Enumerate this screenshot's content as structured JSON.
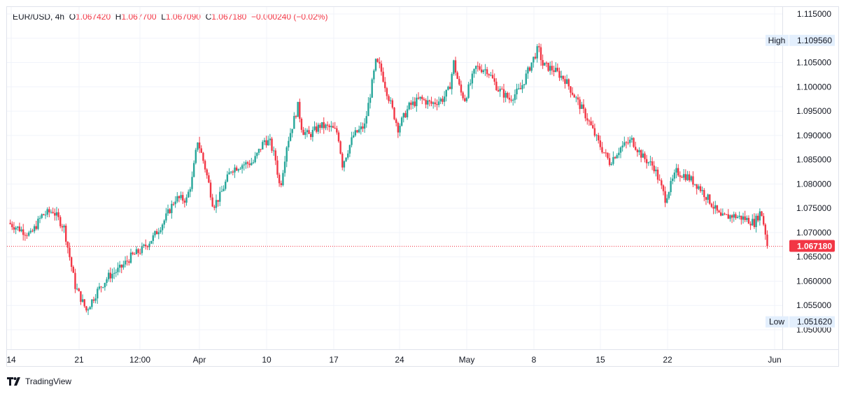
{
  "legend": {
    "symbol": "EUR/USD",
    "interval": "4h",
    "open_label": "O",
    "open": "1.067420",
    "high_label": "H",
    "high": "1.067700",
    "low_label": "L",
    "low": "1.067090",
    "close_label": "C",
    "close": "1.067180",
    "change": "−0.000240 (−0.02%)"
  },
  "brand": "TradingView",
  "colors": {
    "up": "#26a69a",
    "down": "#f23645",
    "grid": "#f0f3fa",
    "last": "#f23645"
  },
  "chart_data": {
    "type": "candlestick",
    "symbol": "EUR/USD",
    "interval": "4h",
    "ylim": [
      1.0465,
      1.1155
    ],
    "yticks": [
      "1.115000",
      "1.110000",
      "1.105000",
      "1.100000",
      "1.095000",
      "1.090000",
      "1.085000",
      "1.080000",
      "1.075000",
      "1.070000",
      "1.065000",
      "1.060000",
      "1.055000",
      "1.050000"
    ],
    "xticks": [
      "14",
      "21",
      "12:00",
      "Apr",
      "10",
      "17",
      "24",
      "May",
      "8",
      "15",
      "22",
      "Jun"
    ],
    "markers": {
      "high": {
        "label": "High",
        "value": "1.109560"
      },
      "low": {
        "label": "Low",
        "value": "1.051620"
      },
      "last": {
        "value": "1.067180"
      }
    },
    "close_path": [
      [
        0,
        1.072
      ],
      [
        2,
        1.0695
      ],
      [
        3,
        1.0735
      ],
      [
        4,
        1.0745
      ],
      [
        5,
        1.071
      ],
      [
        6,
        1.059
      ],
      [
        7,
        1.054
      ],
      [
        8,
        1.058
      ],
      [
        9,
        1.061
      ],
      [
        10,
        1.0625
      ],
      [
        11,
        1.065
      ],
      [
        12,
        1.0665
      ],
      [
        13,
        1.069
      ],
      [
        14,
        1.0725
      ],
      [
        15,
        1.077
      ],
      [
        16,
        1.0768
      ],
      [
        16.5,
        1.081
      ],
      [
        17,
        1.089
      ],
      [
        17.6,
        1.084
      ],
      [
        18,
        1.08
      ],
      [
        18.4,
        1.0755
      ],
      [
        19,
        1.0775
      ],
      [
        20,
        1.083
      ],
      [
        21,
        1.084
      ],
      [
        22,
        1.0845
      ],
      [
        23,
        1.089
      ],
      [
        23.5,
        1.0885
      ],
      [
        24,
        1.085
      ],
      [
        24.4,
        1.079
      ],
      [
        25,
        1.088
      ],
      [
        26,
        1.096
      ],
      [
        26.4,
        1.091
      ],
      [
        27,
        1.09
      ],
      [
        28,
        1.092
      ],
      [
        29,
        1.0915
      ],
      [
        29.6,
        1.0905
      ],
      [
        30,
        1.084
      ],
      [
        31,
        1.09
      ],
      [
        32,
        1.092
      ],
      [
        33,
        1.105
      ],
      [
        33.4,
        1.104
      ],
      [
        34,
        1.099
      ],
      [
        35,
        1.0915
      ],
      [
        36,
        1.096
      ],
      [
        37,
        1.0975
      ],
      [
        38,
        1.0965
      ],
      [
        39,
        1.0975
      ],
      [
        39.6,
        1.0995
      ],
      [
        40,
        1.105
      ],
      [
        40.6,
        1.099
      ],
      [
        41,
        1.0975
      ],
      [
        42,
        1.104
      ],
      [
        43,
        1.1035
      ],
      [
        44,
        1.0995
      ],
      [
        45,
        1.0975
      ],
      [
        46,
        1.0995
      ],
      [
        47,
        1.105
      ],
      [
        47.6,
        1.108
      ],
      [
        48,
        1.1045
      ],
      [
        49,
        1.1035
      ],
      [
        50,
        1.1015
      ],
      [
        51,
        1.0975
      ],
      [
        52,
        1.0935
      ],
      [
        53,
        1.0885
      ],
      [
        54,
        1.0845
      ],
      [
        55,
        1.0875
      ],
      [
        56,
        1.089
      ],
      [
        57,
        1.0855
      ],
      [
        58,
        1.0835
      ],
      [
        59,
        1.077
      ],
      [
        60,
        1.0825
      ],
      [
        61,
        1.0815
      ],
      [
        62,
        1.0795
      ],
      [
        63,
        1.0765
      ],
      [
        64,
        1.073
      ],
      [
        65,
        1.0735
      ],
      [
        66,
        1.073
      ],
      [
        67,
        1.072
      ],
      [
        67.6,
        1.0745
      ],
      [
        68,
        1.07
      ],
      [
        68.2,
        1.0672
      ]
    ],
    "x_range": [
      0,
      73
    ],
    "x_tick_positions": [
      0.5,
      10.5,
      19.3,
      28.4,
      38.6,
      48.5,
      58.2,
      68.6,
      78.7,
      88.5,
      98.6,
      112.1
    ]
  }
}
